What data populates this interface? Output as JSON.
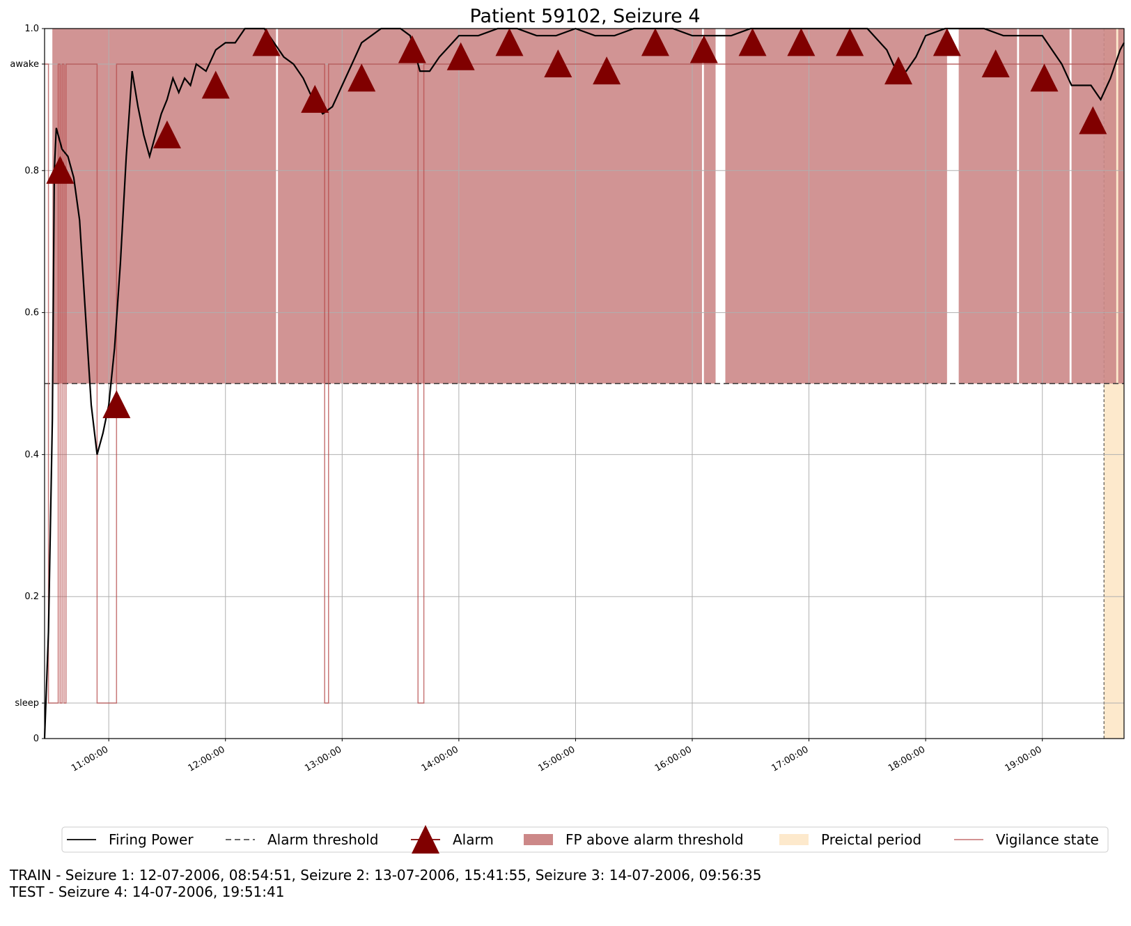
{
  "chart_data": {
    "type": "line",
    "title": "Patient 59102, Seizure 4",
    "xlabel": "",
    "ylabel": "",
    "x_range": [
      "10:27:00",
      "19:42:00"
    ],
    "ylim": [
      0,
      1.0
    ],
    "grid": true,
    "x_ticks": [
      "11:00:00",
      "12:00:00",
      "13:00:00",
      "14:00:00",
      "15:00:00",
      "16:00:00",
      "17:00:00",
      "18:00:00",
      "19:00:00"
    ],
    "y_ticks": [
      {
        "value": 0,
        "label": "0"
      },
      {
        "value": 0.05,
        "label": "sleep"
      },
      {
        "value": 0.2,
        "label": "0.2"
      },
      {
        "value": 0.4,
        "label": "0.4"
      },
      {
        "value": 0.6,
        "label": "0.6"
      },
      {
        "value": 0.8,
        "label": "0.8"
      },
      {
        "value": 0.95,
        "label": "awake"
      },
      {
        "value": 1.0,
        "label": "1.0"
      }
    ],
    "alarm_threshold": 0.5,
    "preictal_period": [
      "19:31:41",
      "19:42:00"
    ],
    "colors": {
      "firing_power": "#000000",
      "alarm": "#800000",
      "fp_above": "#cc8888",
      "preictal": "#fde9cc",
      "vigilance": "#b54a4a"
    },
    "series": [
      {
        "name": "Firing Power",
        "points": [
          [
            "10:27:00",
            0.0
          ],
          [
            "10:29:00",
            0.15
          ],
          [
            "10:31:00",
            0.45
          ],
          [
            "10:32:00",
            0.8
          ],
          [
            "10:33:00",
            0.86
          ],
          [
            "10:36:00",
            0.83
          ],
          [
            "10:39:00",
            0.82
          ],
          [
            "10:42:00",
            0.79
          ],
          [
            "10:45:00",
            0.73
          ],
          [
            "10:48:00",
            0.6
          ],
          [
            "10:51:00",
            0.47
          ],
          [
            "10:54:00",
            0.4
          ],
          [
            "10:57:00",
            0.43
          ],
          [
            "11:00:00",
            0.47
          ],
          [
            "11:03:00",
            0.55
          ],
          [
            "11:06:00",
            0.67
          ],
          [
            "11:09:00",
            0.82
          ],
          [
            "11:12:00",
            0.94
          ],
          [
            "11:15:00",
            0.89
          ],
          [
            "11:18:00",
            0.85
          ],
          [
            "11:21:00",
            0.82
          ],
          [
            "11:24:00",
            0.85
          ],
          [
            "11:27:00",
            0.88
          ],
          [
            "11:30:00",
            0.9
          ],
          [
            "11:33:00",
            0.93
          ],
          [
            "11:36:00",
            0.91
          ],
          [
            "11:39:00",
            0.93
          ],
          [
            "11:42:00",
            0.92
          ],
          [
            "11:45:00",
            0.95
          ],
          [
            "11:50:00",
            0.94
          ],
          [
            "11:55:00",
            0.97
          ],
          [
            "12:00:00",
            0.98
          ],
          [
            "12:05:00",
            0.98
          ],
          [
            "12:10:00",
            1.0
          ],
          [
            "12:15:00",
            1.0
          ],
          [
            "12:20:00",
            1.0
          ],
          [
            "12:25:00",
            0.98
          ],
          [
            "12:30:00",
            0.96
          ],
          [
            "12:35:00",
            0.95
          ],
          [
            "12:40:00",
            0.93
          ],
          [
            "12:45:00",
            0.9
          ],
          [
            "12:50:00",
            0.88
          ],
          [
            "12:55:00",
            0.89
          ],
          [
            "13:00:00",
            0.92
          ],
          [
            "13:05:00",
            0.95
          ],
          [
            "13:10:00",
            0.98
          ],
          [
            "13:15:00",
            0.99
          ],
          [
            "13:20:00",
            1.0
          ],
          [
            "13:30:00",
            1.0
          ],
          [
            "13:35:00",
            0.99
          ],
          [
            "13:40:00",
            0.94
          ],
          [
            "13:45:00",
            0.94
          ],
          [
            "13:50:00",
            0.96
          ],
          [
            "14:00:00",
            0.99
          ],
          [
            "14:10:00",
            0.99
          ],
          [
            "14:20:00",
            1.0
          ],
          [
            "14:30:00",
            1.0
          ],
          [
            "14:40:00",
            0.99
          ],
          [
            "14:50:00",
            0.99
          ],
          [
            "15:00:00",
            1.0
          ],
          [
            "15:10:00",
            0.99
          ],
          [
            "15:20:00",
            0.99
          ],
          [
            "15:30:00",
            1.0
          ],
          [
            "15:40:00",
            1.0
          ],
          [
            "15:50:00",
            1.0
          ],
          [
            "16:00:00",
            0.99
          ],
          [
            "16:10:00",
            0.99
          ],
          [
            "16:20:00",
            0.99
          ],
          [
            "16:30:00",
            1.0
          ],
          [
            "16:40:00",
            1.0
          ],
          [
            "16:50:00",
            1.0
          ],
          [
            "17:00:00",
            1.0
          ],
          [
            "17:10:00",
            1.0
          ],
          [
            "17:20:00",
            1.0
          ],
          [
            "17:30:00",
            1.0
          ],
          [
            "17:40:00",
            0.97
          ],
          [
            "17:45:00",
            0.94
          ],
          [
            "17:50:00",
            0.94
          ],
          [
            "17:55:00",
            0.96
          ],
          [
            "18:00:00",
            0.99
          ],
          [
            "18:10:00",
            1.0
          ],
          [
            "18:20:00",
            1.0
          ],
          [
            "18:30:00",
            1.0
          ],
          [
            "18:40:00",
            0.99
          ],
          [
            "18:50:00",
            0.99
          ],
          [
            "19:00:00",
            0.99
          ],
          [
            "19:10:00",
            0.95
          ],
          [
            "19:15:00",
            0.92
          ],
          [
            "19:20:00",
            0.92
          ],
          [
            "19:25:00",
            0.92
          ],
          [
            "19:30:00",
            0.9
          ],
          [
            "19:35:00",
            0.93
          ],
          [
            "19:40:00",
            0.97
          ],
          [
            "19:42:00",
            0.98
          ]
        ]
      },
      {
        "name": "Vigilance state",
        "points": [
          [
            "10:27:00",
            "awake"
          ],
          [
            "10:29:00",
            "sleep"
          ],
          [
            "10:34:00",
            "awake"
          ],
          [
            "10:35:00",
            "sleep"
          ],
          [
            "10:36:00",
            "awake"
          ],
          [
            "10:37:00",
            "sleep"
          ],
          [
            "10:38:00",
            "awake"
          ],
          [
            "10:54:00",
            "sleep"
          ],
          [
            "11:04:00",
            "awake"
          ],
          [
            "12:51:00",
            "sleep"
          ],
          [
            "12:53:00",
            "awake"
          ],
          [
            "13:39:00",
            "sleep"
          ],
          [
            "13:42:00",
            "awake"
          ],
          [
            "19:42:00",
            "awake"
          ]
        ]
      }
    ],
    "fp_above_alarm_threshold": [
      [
        "10:31:00",
        "12:26:00"
      ],
      [
        "12:27:00",
        "16:05:00"
      ],
      [
        "16:06:00",
        "16:12:00"
      ],
      [
        "16:17:00",
        "18:11:00"
      ],
      [
        "18:17:00",
        "18:47:00"
      ],
      [
        "18:48:00",
        "19:14:00"
      ],
      [
        "19:15:00",
        "19:38:00"
      ],
      [
        "19:39:00",
        "19:42:00"
      ]
    ],
    "alarms": [
      [
        "10:35:00",
        0.8
      ],
      [
        "11:04:00",
        0.47
      ],
      [
        "11:30:00",
        0.85
      ],
      [
        "11:55:00",
        0.92
      ],
      [
        "12:21:00",
        0.98
      ],
      [
        "12:46:00",
        0.9
      ],
      [
        "13:10:00",
        0.93
      ],
      [
        "13:36:00",
        0.97
      ],
      [
        "14:01:00",
        0.96
      ],
      [
        "14:26:00",
        0.98
      ],
      [
        "14:51:00",
        0.95
      ],
      [
        "15:16:00",
        0.94
      ],
      [
        "15:41:00",
        0.98
      ],
      [
        "16:06:00",
        0.97
      ],
      [
        "16:31:00",
        0.98
      ],
      [
        "16:56:00",
        0.98
      ],
      [
        "17:21:00",
        0.98
      ],
      [
        "17:46:00",
        0.94
      ],
      [
        "18:11:00",
        0.98
      ],
      [
        "18:36:00",
        0.95
      ],
      [
        "19:01:00",
        0.93
      ],
      [
        "19:26:00",
        0.87
      ]
    ],
    "legend": {
      "placement": "below plot",
      "entries": [
        "Firing Power",
        "Alarm threshold",
        "Alarm",
        "FP above alarm threshold",
        "Preictal period",
        "Vigilance state"
      ]
    }
  },
  "captions": {
    "train": "TRAIN - Seizure 1: 12-07-2006, 08:54:51, Seizure 2: 13-07-2006, 15:41:55, Seizure 3: 14-07-2006, 09:56:35",
    "test": "TEST - Seizure 4: 14-07-2006, 19:51:41"
  }
}
